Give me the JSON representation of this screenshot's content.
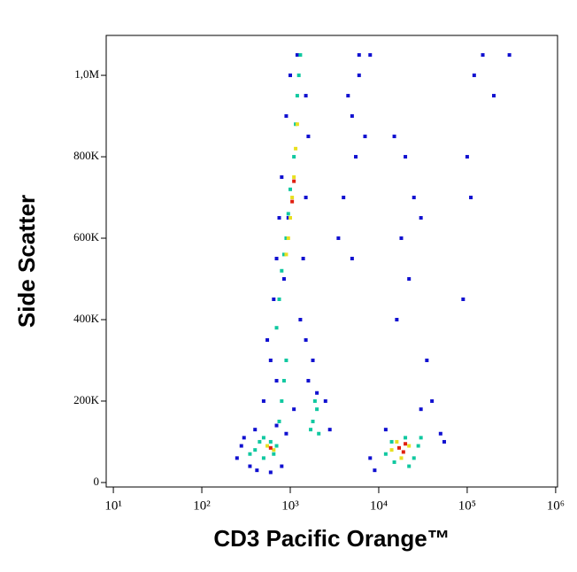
{
  "chart_data": {
    "type": "scatter",
    "x_label": "CD3 Pacific Orange™",
    "y_label": "Side Scatter",
    "x_scale": "log",
    "xlim": [
      8.3,
      1050000
    ],
    "ylim": [
      -11000,
      1098000
    ],
    "xticks": [
      {
        "value": 10,
        "label": "10¹"
      },
      {
        "value": 100,
        "label": "10²"
      },
      {
        "value": 1000,
        "label": "10³"
      },
      {
        "value": 10000,
        "label": "10⁴"
      },
      {
        "value": 100000,
        "label": "10⁵"
      },
      {
        "value": 1000000,
        "label": "10⁶"
      }
    ],
    "yticks": [
      0,
      {
        "value": 200000,
        "label": "200K"
      },
      {
        "value": 400000,
        "label": "400K"
      },
      {
        "value": 600000,
        "label": "600K"
      },
      {
        "value": 800000,
        "label": "800K"
      },
      {
        "value": 1000000,
        "label": "1,0M"
      }
    ],
    "series": [
      {
        "color": "#1010d0",
        "x": [
          250,
          300,
          350,
          400,
          420,
          800,
          900,
          280,
          700,
          600,
          600,
          650,
          700,
          750,
          800,
          900,
          1000,
          1500,
          1600,
          1500,
          1400,
          1300,
          1500,
          1600,
          500,
          550,
          1200,
          1800,
          2000,
          2500,
          2800,
          1100,
          700,
          850,
          950,
          4500,
          5000,
          6000,
          5500,
          4000,
          7000,
          3500,
          5000,
          6000,
          8000,
          15000,
          20000,
          25000,
          18000,
          30000,
          22000,
          16000,
          35000,
          40000,
          30000,
          12000,
          50000,
          55000,
          8000,
          9000,
          100000,
          110000,
          90000,
          120000,
          150000,
          300000,
          200000
        ],
        "values": [
          60000,
          110000,
          40000,
          130000,
          30000,
          40000,
          120000,
          90000,
          140000,
          25000,
          300000,
          450000,
          550000,
          650000,
          750000,
          900000,
          1000000,
          950000,
          850000,
          700000,
          550000,
          400000,
          350000,
          250000,
          200000,
          350000,
          1050000,
          300000,
          220000,
          200000,
          130000,
          180000,
          250000,
          500000,
          650000,
          950000,
          900000,
          1000000,
          800000,
          700000,
          850000,
          600000,
          550000,
          1050000,
          1050000,
          850000,
          800000,
          700000,
          600000,
          650000,
          500000,
          400000,
          300000,
          200000,
          180000,
          130000,
          120000,
          100000,
          60000,
          30000,
          800000,
          700000,
          450000,
          1000000,
          1050000,
          1050000,
          950000
        ]
      },
      {
        "color": "#10c8a0",
        "x": [
          700,
          750,
          800,
          850,
          900,
          950,
          1000,
          1100,
          1150,
          1200,
          1250,
          1300,
          900,
          850,
          800,
          750,
          400,
          450,
          500,
          600,
          650,
          500,
          350,
          700,
          1800,
          2000,
          2100,
          1900,
          1700,
          12000,
          14000,
          20000,
          25000,
          28000,
          15000,
          22000,
          30000
        ],
        "values": [
          380000,
          450000,
          520000,
          560000,
          600000,
          660000,
          720000,
          800000,
          880000,
          950000,
          1000000,
          1050000,
          300000,
          250000,
          200000,
          150000,
          80000,
          100000,
          60000,
          100000,
          70000,
          110000,
          70000,
          90000,
          150000,
          180000,
          120000,
          200000,
          130000,
          70000,
          100000,
          110000,
          60000,
          90000,
          50000,
          40000,
          110000
        ]
      },
      {
        "color": "#e8e020",
        "x": [
          1000,
          1050,
          1100,
          950,
          1150,
          1200,
          900,
          550,
          650,
          16000,
          22000,
          18000,
          14000
        ],
        "values": [
          650000,
          700000,
          750000,
          600000,
          820000,
          880000,
          560000,
          90000,
          80000,
          100000,
          90000,
          60000,
          80000
        ]
      },
      {
        "color": "#e02010",
        "x": [
          1050,
          1100,
          17000,
          19000,
          20000,
          600
        ],
        "values": [
          690000,
          740000,
          85000,
          75000,
          95000,
          85000
        ]
      }
    ]
  }
}
